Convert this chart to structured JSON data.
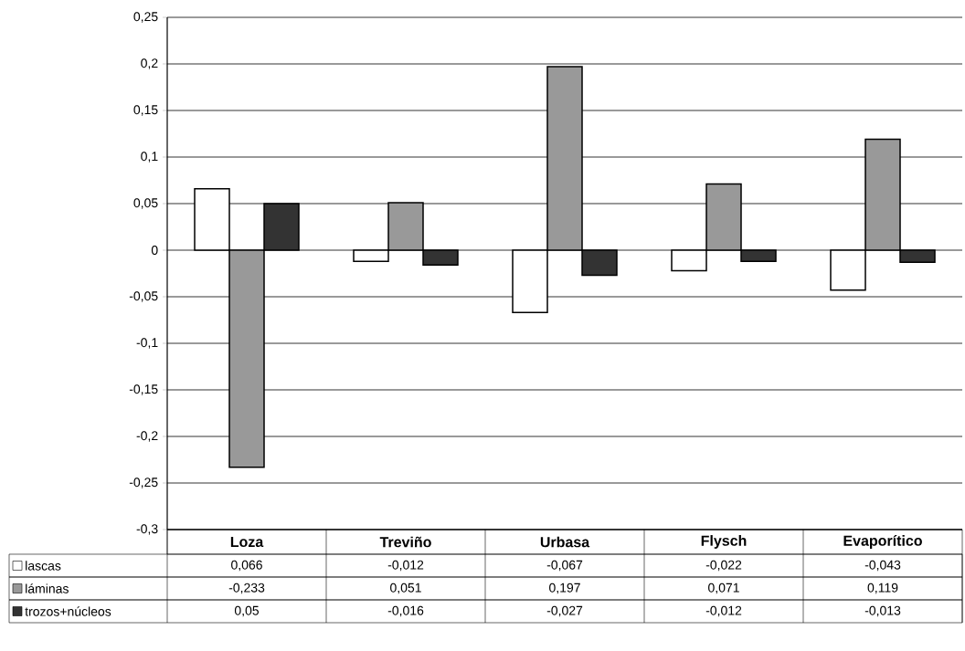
{
  "chart_data": {
    "type": "bar",
    "categories": [
      "Loza",
      "Treviño",
      "Urbasa",
      "Flysch",
      "Evaporítico"
    ],
    "series": [
      {
        "name": "lascas",
        "color": "#ffffff",
        "values": [
          0.066,
          -0.012,
          -0.067,
          -0.022,
          -0.043
        ],
        "value_labels": [
          "0,066",
          "-0,012",
          "-0,067",
          "-0,022",
          "-0,043"
        ]
      },
      {
        "name": "láminas",
        "color": "#999999",
        "values": [
          -0.233,
          0.051,
          0.197,
          0.071,
          0.119
        ],
        "value_labels": [
          "-0,233",
          "0,051",
          "0,197",
          "0,071",
          "0,119"
        ]
      },
      {
        "name": "trozos+núcleos",
        "color": "#333333",
        "values": [
          0.05,
          -0.016,
          -0.027,
          -0.012,
          -0.013
        ],
        "value_labels": [
          "0,05",
          "-0,016",
          "-0,027",
          "-0,012",
          "-0,013"
        ]
      }
    ],
    "ylim": [
      -0.3,
      0.25
    ],
    "yticks": [
      {
        "value": -0.3,
        "label": "-0,3"
      },
      {
        "value": -0.25,
        "label": "-0,25"
      },
      {
        "value": -0.2,
        "label": "-0,2"
      },
      {
        "value": -0.15,
        "label": "-0,15"
      },
      {
        "value": -0.1,
        "label": "-0,1"
      },
      {
        "value": -0.05,
        "label": "-0,05"
      },
      0,
      {
        "value": 0.05,
        "label": "0,05"
      },
      {
        "value": 0.1,
        "label": "0,1"
      },
      {
        "value": 0.15,
        "label": "0,15"
      },
      {
        "value": 0.2,
        "label": "0,2"
      },
      {
        "value": 0.25,
        "label": "0,25"
      }
    ],
    "grid": "y",
    "legend": "bottom"
  }
}
